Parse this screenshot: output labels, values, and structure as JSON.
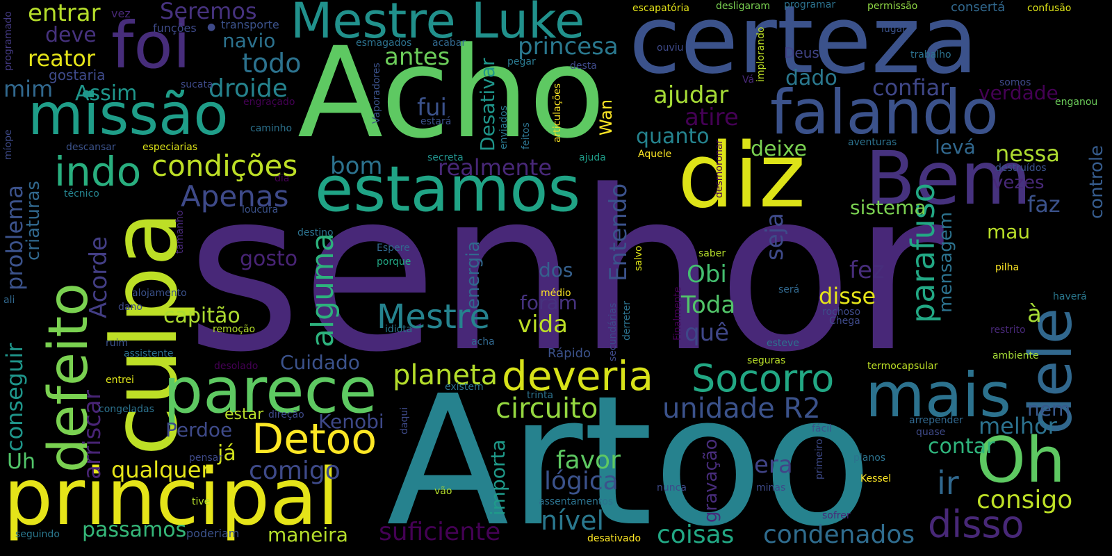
{
  "words": [
    {
      "text": "senhor",
      "color": "#482878"
    },
    {
      "text": "Artoo",
      "color": "#26828e"
    },
    {
      "text": "Acho",
      "color": "#5ec962"
    },
    {
      "text": "certeza",
      "color": "#3b528b"
    },
    {
      "text": "culpa",
      "color": "#bddf26"
    },
    {
      "text": "diz",
      "color": "#dde318"
    },
    {
      "text": "Bem",
      "color": "#46327e"
    },
    {
      "text": "estamos",
      "color": "#20a486"
    },
    {
      "text": "falando",
      "color": "#3b528b"
    },
    {
      "text": "missão",
      "color": "#1f9e89"
    },
    {
      "text": "foi",
      "color": "#472d7b"
    },
    {
      "text": "Mestre Luke",
      "color": "#21918c"
    },
    {
      "text": "defeito",
      "color": "#7ad151"
    },
    {
      "text": "parece",
      "color": "#5ec962"
    },
    {
      "text": "principal",
      "color": "#e5e419"
    },
    {
      "text": "mais",
      "color": "#2c728e"
    },
    {
      "text": "dele",
      "color": "#31688e"
    },
    {
      "text": "Oh",
      "color": "#5ec962"
    },
    {
      "text": "disso",
      "color": "#482878"
    },
    {
      "text": "deveria",
      "color": "#d8e219"
    },
    {
      "text": "Socorro",
      "color": "#22a884"
    },
    {
      "text": "Detoo",
      "color": "#fde725"
    },
    {
      "text": "indo",
      "color": "#29af7f"
    },
    {
      "text": "condições",
      "color": "#bddf26"
    },
    {
      "text": "Apenas",
      "color": "#3e4a89"
    },
    {
      "text": "alguma",
      "color": "#2db27d"
    },
    {
      "text": "Mestre",
      "color": "#25838e"
    },
    {
      "text": "planeta",
      "color": "#b5de2b"
    },
    {
      "text": "circuito",
      "color": "#95d840"
    },
    {
      "text": "unidade R2",
      "color": "#3b528b"
    },
    {
      "text": "ir",
      "color": "#31688e"
    },
    {
      "text": "consigo",
      "color": "#bddf26"
    },
    {
      "text": "nível",
      "color": "#2a788e"
    },
    {
      "text": "coisas",
      "color": "#22a884"
    },
    {
      "text": "condenados",
      "color": "#2f6c8e"
    },
    {
      "text": "suficiente",
      "color": "#440154"
    },
    {
      "text": "maneira",
      "color": "#b5de2b"
    },
    {
      "text": "passamos",
      "color": "#35b779"
    },
    {
      "text": "comigo",
      "color": "#3e4a89"
    },
    {
      "text": "qualquer",
      "color": "#e5e419"
    },
    {
      "text": "favor",
      "color": "#5ec962"
    },
    {
      "text": "lógica",
      "color": "#3b528b"
    },
    {
      "text": "era",
      "color": "#414487"
    },
    {
      "text": "contar",
      "color": "#2fb47c"
    },
    {
      "text": "melhor",
      "color": "#2c728e"
    },
    {
      "text": "nem",
      "color": "#38598c"
    },
    {
      "text": "importa",
      "color": "#1f9a8a"
    },
    {
      "text": "gravação",
      "color": "#472c7a"
    },
    {
      "text": "Kenobi",
      "color": "#3e4989"
    },
    {
      "text": "Cuidado",
      "color": "#3b528b"
    },
    {
      "text": "Perdoe",
      "color": "#3e4a89"
    },
    {
      "text": "já",
      "color": "#d0e11c"
    },
    {
      "text": "estar",
      "color": "#b8de29"
    },
    {
      "text": "arriscar",
      "color": "#482475"
    },
    {
      "text": "conseguir",
      "color": "#1f968b"
    },
    {
      "text": "problema",
      "color": "#3b528b"
    },
    {
      "text": "criaturas",
      "color": "#31688e"
    },
    {
      "text": "Acorde",
      "color": "#433e85"
    },
    {
      "text": "capitão",
      "color": "#addc30"
    },
    {
      "text": "quê",
      "color": "#3f4788"
    },
    {
      "text": "vida",
      "color": "#bddf26"
    },
    {
      "text": "foram",
      "color": "#46327e"
    },
    {
      "text": "fez",
      "color": "#472d7b"
    },
    {
      "text": "disse",
      "color": "#e5e419"
    },
    {
      "text": "Toda",
      "color": "#52c569"
    },
    {
      "text": "Obi",
      "color": "#44bf70"
    },
    {
      "text": "dos",
      "color": "#35608d"
    },
    {
      "text": "energia",
      "color": "#31688e"
    },
    {
      "text": "gosto",
      "color": "#482475"
    },
    {
      "text": "seja",
      "color": "#3e4a89"
    },
    {
      "text": "parafuso",
      "color": "#22a884"
    },
    {
      "text": "mensagem",
      "color": "#2c728e"
    },
    {
      "text": "à",
      "color": "#a5db36"
    },
    {
      "text": "mau",
      "color": "#b8de29"
    },
    {
      "text": "sistema",
      "color": "#7ad151"
    },
    {
      "text": "faz",
      "color": "#3b528b"
    },
    {
      "text": "vezes",
      "color": "#482878"
    },
    {
      "text": "nessa",
      "color": "#addc30"
    },
    {
      "text": "levá",
      "color": "#31688e"
    },
    {
      "text": "deixe",
      "color": "#7ad151"
    },
    {
      "text": "verdade",
      "color": "#440154"
    },
    {
      "text": "controle",
      "color": "#365c8d"
    },
    {
      "text": "confiar",
      "color": "#3f4788"
    },
    {
      "text": "dado",
      "color": "#2a788e"
    },
    {
      "text": "ajudar",
      "color": "#a5db36"
    },
    {
      "text": "atire",
      "color": "#440154"
    },
    {
      "text": "quanto",
      "color": "#25838e"
    },
    {
      "text": "Entendo",
      "color": "#3b528b"
    },
    {
      "text": "realmente",
      "color": "#482878"
    },
    {
      "text": "bom",
      "color": "#2c728e"
    },
    {
      "text": "Desativar",
      "color": "#1f968b"
    },
    {
      "text": "fui",
      "color": "#3b528b"
    },
    {
      "text": "princesa",
      "color": "#2a788e"
    },
    {
      "text": "antes",
      "color": "#6ccd5a"
    },
    {
      "text": "todo",
      "color": "#2c728e"
    },
    {
      "text": "droide",
      "color": "#25838e"
    },
    {
      "text": "Assim",
      "color": "#1f968b"
    },
    {
      "text": "Seremos",
      "color": "#46327e"
    },
    {
      "text": "navio",
      "color": "#2c728e"
    },
    {
      "text": "entrar",
      "color": "#b5de2b"
    },
    {
      "text": "deve",
      "color": "#46327e"
    },
    {
      "text": "reator",
      "color": "#e5e419"
    },
    {
      "text": "mim",
      "color": "#31688e"
    },
    {
      "text": "gostaria",
      "color": "#3e4a89"
    },
    {
      "text": "Uh",
      "color": "#52c569"
    },
    {
      "text": "Wan",
      "color": "#fde725"
    },
    {
      "text": "Deus",
      "color": "#414487"
    },
    {
      "text": "vez",
      "color": "#482878"
    },
    {
      "text": "funções",
      "color": "#3e4a89"
    },
    {
      "text": "transporte",
      "color": "#3b528b"
    },
    {
      "text": "programado",
      "color": "#443a83"
    },
    {
      "text": "esmagados",
      "color": "#2c728e"
    },
    {
      "text": "acabar",
      "color": "#31688e"
    },
    {
      "text": "pegar",
      "color": "#2a788e"
    },
    {
      "text": "desta",
      "color": "#3e4a89"
    },
    {
      "text": "ouviu",
      "color": "#3e4989"
    },
    {
      "text": "Vaporadores",
      "color": "#3b528b"
    },
    {
      "text": "articulações",
      "color": "#fde725"
    },
    {
      "text": "enviados",
      "color": "#2a788e"
    },
    {
      "text": "feitos",
      "color": "#2c728e"
    },
    {
      "text": "estará",
      "color": "#3b528b"
    },
    {
      "text": "secreta",
      "color": "#21918c"
    },
    {
      "text": "ajuda",
      "color": "#1f9e89"
    },
    {
      "text": "Aquele",
      "color": "#fde725"
    },
    {
      "text": "engraçado",
      "color": "#440154"
    },
    {
      "text": "sucata",
      "color": "#3e4a89"
    },
    {
      "text": "caminho",
      "color": "#2c728e"
    },
    {
      "text": "descansar",
      "color": "#3b528b"
    },
    {
      "text": "especiarias",
      "color": "#dde318"
    },
    {
      "text": "míope",
      "color": "#3e4a89"
    },
    {
      "text": "técnico",
      "color": "#25838e"
    },
    {
      "text": "dia",
      "color": "#440154"
    },
    {
      "text": "loucura",
      "color": "#3b528b"
    },
    {
      "text": "tamanho",
      "color": "#482878"
    },
    {
      "text": "destino",
      "color": "#2c728e"
    },
    {
      "text": "Espere",
      "color": "#31688e"
    },
    {
      "text": "porque",
      "color": "#22a884"
    },
    {
      "text": "escapatória",
      "color": "#e5e419"
    },
    {
      "text": "desligaram",
      "color": "#7ad151"
    },
    {
      "text": "programar",
      "color": "#2c728e"
    },
    {
      "text": "permissão",
      "color": "#8fd744"
    },
    {
      "text": "consertá",
      "color": "#31688e"
    },
    {
      "text": "confusão",
      "color": "#dde318"
    },
    {
      "text": "lugar",
      "color": "#3b528b"
    },
    {
      "text": "implorando",
      "color": "#bddf26"
    },
    {
      "text": "trabalho",
      "color": "#2c728e"
    },
    {
      "text": "Vá",
      "color": "#482878"
    },
    {
      "text": "somos",
      "color": "#3e4a89"
    },
    {
      "text": "enganou",
      "color": "#6ccd5a"
    },
    {
      "text": "aventuras",
      "color": "#2c728e"
    },
    {
      "text": "desmoronar",
      "color": "#440154"
    },
    {
      "text": "destruídos",
      "color": "#3b528b"
    },
    {
      "text": "saber",
      "color": "#b5de2b"
    },
    {
      "text": "pilha",
      "color": "#fde725"
    },
    {
      "text": "será",
      "color": "#31688e"
    },
    {
      "text": "haverá",
      "color": "#2a788e"
    },
    {
      "text": "rochoso",
      "color": "#3e4a89"
    },
    {
      "text": "Chega",
      "color": "#3e4a89"
    },
    {
      "text": "restrito",
      "color": "#482878"
    },
    {
      "text": "Finalmente",
      "color": "#440154"
    },
    {
      "text": "esteve",
      "color": "#2c728e"
    },
    {
      "text": "seguras",
      "color": "#b8de29"
    },
    {
      "text": "ambiente",
      "color": "#a5db36"
    },
    {
      "text": "termocapsular",
      "color": "#bddf26"
    },
    {
      "text": "médio",
      "color": "#fde725"
    },
    {
      "text": "salvo",
      "color": "#dde318"
    },
    {
      "text": "secundárias",
      "color": "#3e4a89"
    },
    {
      "text": "derreter",
      "color": "#2c728e"
    },
    {
      "text": "alojamento",
      "color": "#3b528b"
    },
    {
      "text": "ali",
      "color": "#31688e"
    },
    {
      "text": "dano",
      "color": "#3e4a89"
    },
    {
      "text": "remoção",
      "color": "#b5de2b"
    },
    {
      "text": "idiota",
      "color": "#2a788e"
    },
    {
      "text": "acha",
      "color": "#31688e"
    },
    {
      "text": "ruim",
      "color": "#3b528b"
    },
    {
      "text": "assistente",
      "color": "#2c728e"
    },
    {
      "text": "desolado",
      "color": "#440154"
    },
    {
      "text": "Rápido",
      "color": "#3b528b"
    },
    {
      "text": "entrei",
      "color": "#dde318"
    },
    {
      "text": "existem",
      "color": "#2c728e"
    },
    {
      "text": "trinta",
      "color": "#2c728e"
    },
    {
      "text": "congeladas",
      "color": "#2c728e"
    },
    {
      "text": "direção",
      "color": "#3e4a89"
    },
    {
      "text": "daqui",
      "color": "#3e4a89"
    },
    {
      "text": "pensar",
      "color": "#3e4a89"
    },
    {
      "text": "tive",
      "color": "#b5de2b"
    },
    {
      "text": "poderiam",
      "color": "#3b528b"
    },
    {
      "text": "seguindo",
      "color": "#2a788e"
    },
    {
      "text": "vão",
      "color": "#b5de2b"
    },
    {
      "text": "assentamentos",
      "color": "#2c728e"
    },
    {
      "text": "nunca",
      "color": "#3e4a89"
    },
    {
      "text": "minas",
      "color": "#3e4a89"
    },
    {
      "text": "desativado",
      "color": "#fde725"
    },
    {
      "text": "sofrer",
      "color": "#482878"
    },
    {
      "text": "Kessel",
      "color": "#fde725"
    },
    {
      "text": "planos",
      "color": "#2c728e"
    },
    {
      "text": "primeiro",
      "color": "#3e4a89"
    },
    {
      "text": "fácil",
      "color": "#3b528b"
    },
    {
      "text": "quase",
      "color": "#3e4a89"
    },
    {
      "text": "arrepender",
      "color": "#31688e"
    }
  ]
}
